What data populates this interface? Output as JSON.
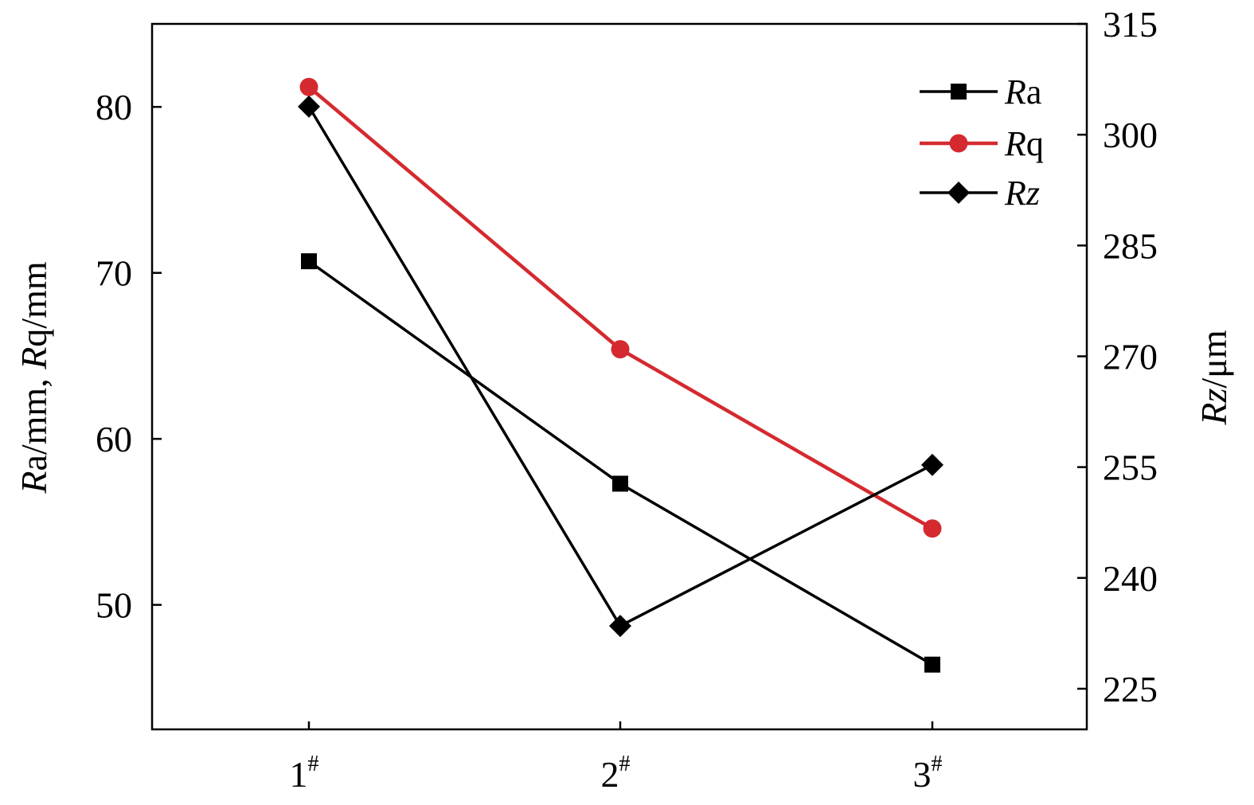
{
  "chart_data": {
    "type": "line",
    "categories": [
      "1#",
      "2#",
      "3#"
    ],
    "category_ticks": [
      {
        "main": "1",
        "sup": "#"
      },
      {
        "main": "2",
        "sup": "#"
      },
      {
        "main": "3",
        "sup": "#"
      }
    ],
    "left_axis": {
      "label_parts": [
        {
          "text": "R",
          "italic": true
        },
        {
          "text": "a/mm, ",
          "italic": false
        },
        {
          "text": "R",
          "italic": true
        },
        {
          "text": "q/mm",
          "italic": false
        }
      ],
      "ticks": [
        "50",
        "60",
        "70",
        "80"
      ],
      "tick_values": [
        50,
        60,
        70,
        80
      ],
      "ylim": [
        42.5,
        85
      ]
    },
    "right_axis": {
      "label_parts": [
        {
          "text": "Rz",
          "italic": true
        },
        {
          "text": "/μm",
          "italic": false
        }
      ],
      "ticks": [
        "225",
        "240",
        "255",
        "270",
        "285",
        "300",
        "315"
      ],
      "tick_values": [
        225,
        240,
        255,
        270,
        285,
        300,
        315
      ],
      "ylim": [
        219.5,
        315
      ]
    },
    "series": [
      {
        "name_parts": [
          {
            "text": "R",
            "italic": true
          },
          {
            "text": "a",
            "italic": false
          }
        ],
        "axis": "left",
        "values": [
          70.7,
          57.3,
          46.4
        ],
        "color": "#000000",
        "marker": "square"
      },
      {
        "name_parts": [
          {
            "text": "R",
            "italic": true
          },
          {
            "text": "q",
            "italic": false
          }
        ],
        "axis": "left",
        "values": [
          81.2,
          65.4,
          54.6
        ],
        "color": "#d42a2f",
        "marker": "circle"
      },
      {
        "name_parts": [
          {
            "text": "Rz",
            "italic": true
          }
        ],
        "axis": "right",
        "values": [
          303.8,
          233.5,
          255.3
        ],
        "color": "#000000",
        "marker": "diamond"
      }
    ],
    "grid": false,
    "legend_position": "top-right"
  }
}
